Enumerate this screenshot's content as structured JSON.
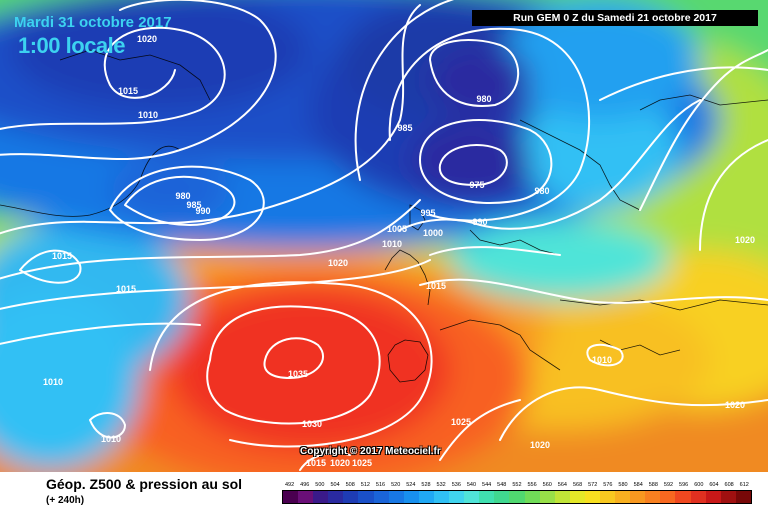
{
  "header": {
    "date": "Mardi 31 octobre 2017",
    "time": "1:00 locale",
    "run": "Run GEM 0 Z du Samedi 21 octobre 2017"
  },
  "copyright": "Copyright © 2017 Meteociel.fr",
  "footer": {
    "title": "Géop. Z500 & pression au sol",
    "subtitle": "(+ 240h)"
  },
  "scale": {
    "values": [
      "492",
      "496",
      "500",
      "504",
      "508",
      "512",
      "516",
      "520",
      "524",
      "528",
      "532",
      "536",
      "540",
      "544",
      "548",
      "552",
      "556",
      "560",
      "564",
      "568",
      "572",
      "576",
      "580",
      "584",
      "588",
      "592",
      "596",
      "600",
      "604",
      "608",
      "612"
    ],
    "colors": [
      "#4a0050",
      "#6a0f78",
      "#3a1a8a",
      "#2a2aa0",
      "#1e3cb4",
      "#1a50c8",
      "#1a64d8",
      "#1878e4",
      "#1890ee",
      "#20a8f4",
      "#30c0f4",
      "#40d4ee",
      "#50e4d8",
      "#40e0b0",
      "#40d890",
      "#50d870",
      "#70dc58",
      "#98e048",
      "#c0e438",
      "#e4e828",
      "#f8e020",
      "#f8c820",
      "#f8b020",
      "#f89820",
      "#f88020",
      "#f86820",
      "#f04820",
      "#e03020",
      "#c81818",
      "#a01010",
      "#780808"
    ]
  },
  "isobars": [
    "1020",
    "1015",
    "1010",
    "980",
    "985",
    "990",
    "980",
    "975",
    "980",
    "985",
    "995",
    "1000",
    "1005",
    "1010",
    "990",
    "1020",
    "1015",
    "1015",
    "1020",
    "1015",
    "1035",
    "1030",
    "1025",
    "1025",
    "1020",
    "1010",
    "1020",
    "1010",
    "1010",
    "1015",
    "1020",
    "1025"
  ]
}
